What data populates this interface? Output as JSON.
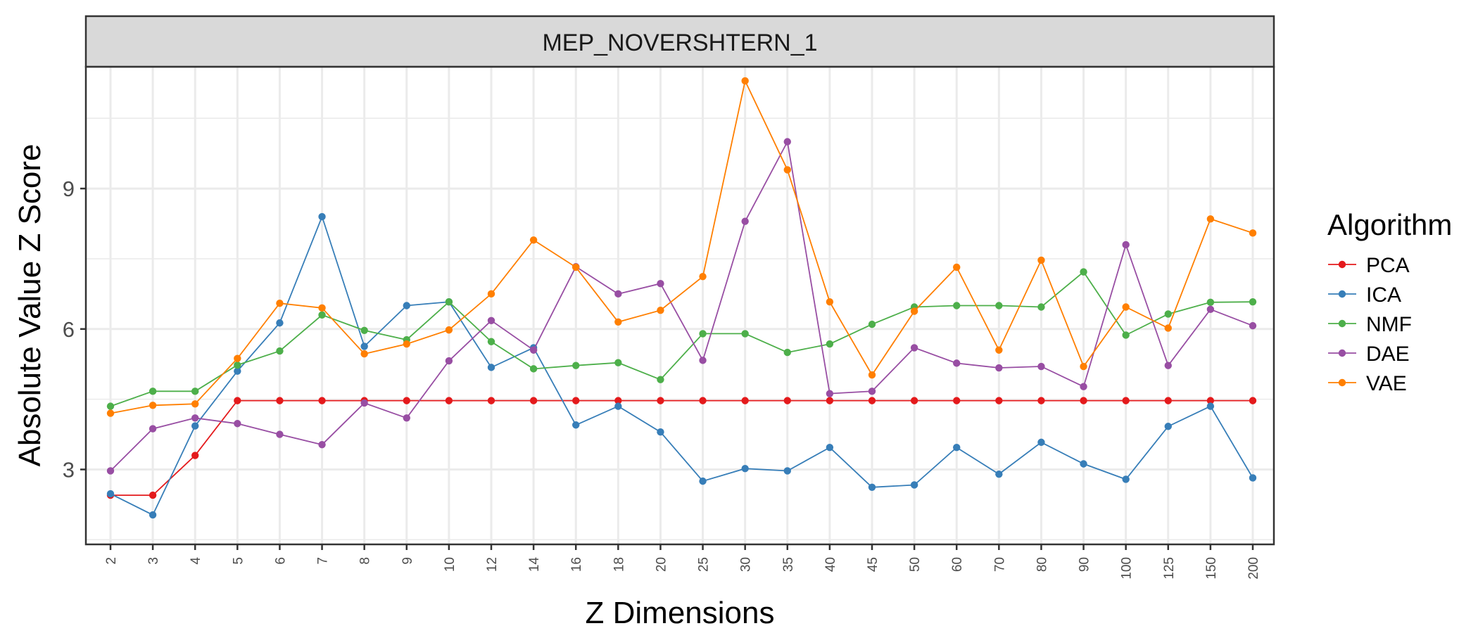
{
  "chart_data": {
    "type": "line",
    "facet_title": "MEP_NOVERSHTERN_1",
    "xlabel": "Z Dimensions",
    "ylabel": "Absolute Value Z Score",
    "categories": [
      "2",
      "3",
      "4",
      "5",
      "6",
      "7",
      "8",
      "9",
      "10",
      "12",
      "14",
      "16",
      "18",
      "20",
      "25",
      "30",
      "35",
      "40",
      "45",
      "50",
      "60",
      "70",
      "80",
      "90",
      "100",
      "125",
      "150",
      "200"
    ],
    "y_ticks": [
      3,
      6,
      9
    ],
    "ylim": [
      1.4,
      11.6
    ],
    "grid": true,
    "legend_title": "Algorithm",
    "legend_position": "right",
    "series": [
      {
        "name": "PCA",
        "color": "#E41A1C",
        "values": [
          2.45,
          2.45,
          3.3,
          4.47,
          4.47,
          4.47,
          4.47,
          4.47,
          4.47,
          4.47,
          4.47,
          4.47,
          4.47,
          4.47,
          4.47,
          4.47,
          4.47,
          4.47,
          4.47,
          4.47,
          4.47,
          4.47,
          4.47,
          4.47,
          4.47,
          4.47,
          4.47,
          4.47
        ]
      },
      {
        "name": "ICA",
        "color": "#377EB8",
        "values": [
          2.48,
          2.03,
          3.93,
          5.1,
          6.13,
          8.4,
          5.63,
          6.5,
          6.58,
          5.18,
          5.6,
          3.95,
          4.35,
          3.8,
          2.75,
          3.02,
          2.97,
          3.47,
          2.62,
          2.67,
          3.47,
          2.9,
          3.58,
          3.12,
          2.79,
          3.92,
          4.35,
          2.82
        ]
      },
      {
        "name": "NMF",
        "color": "#4DAF4A",
        "values": [
          4.35,
          4.67,
          4.67,
          5.23,
          5.53,
          6.3,
          5.97,
          5.77,
          6.58,
          5.73,
          5.15,
          5.22,
          5.28,
          4.92,
          5.9,
          5.9,
          5.5,
          5.68,
          6.1,
          6.47,
          6.5,
          6.5,
          6.47,
          7.22,
          5.87,
          6.32,
          6.57,
          6.58
        ]
      },
      {
        "name": "DAE",
        "color": "#984EA3",
        "values": [
          2.97,
          3.87,
          4.1,
          3.98,
          3.75,
          3.53,
          4.42,
          4.1,
          5.32,
          6.18,
          5.55,
          7.33,
          6.75,
          6.97,
          5.33,
          8.3,
          10.0,
          4.62,
          4.67,
          5.6,
          5.27,
          5.17,
          5.2,
          4.77,
          7.8,
          5.22,
          6.42,
          6.07
        ]
      },
      {
        "name": "VAE",
        "color": "#FF7F00",
        "values": [
          4.2,
          4.37,
          4.4,
          5.37,
          6.55,
          6.45,
          5.47,
          5.68,
          5.98,
          6.75,
          7.9,
          7.32,
          6.15,
          6.4,
          7.12,
          11.3,
          9.4,
          6.58,
          5.02,
          6.38,
          7.32,
          5.55,
          7.47,
          5.2,
          6.47,
          6.02,
          8.35,
          8.05
        ]
      }
    ]
  }
}
